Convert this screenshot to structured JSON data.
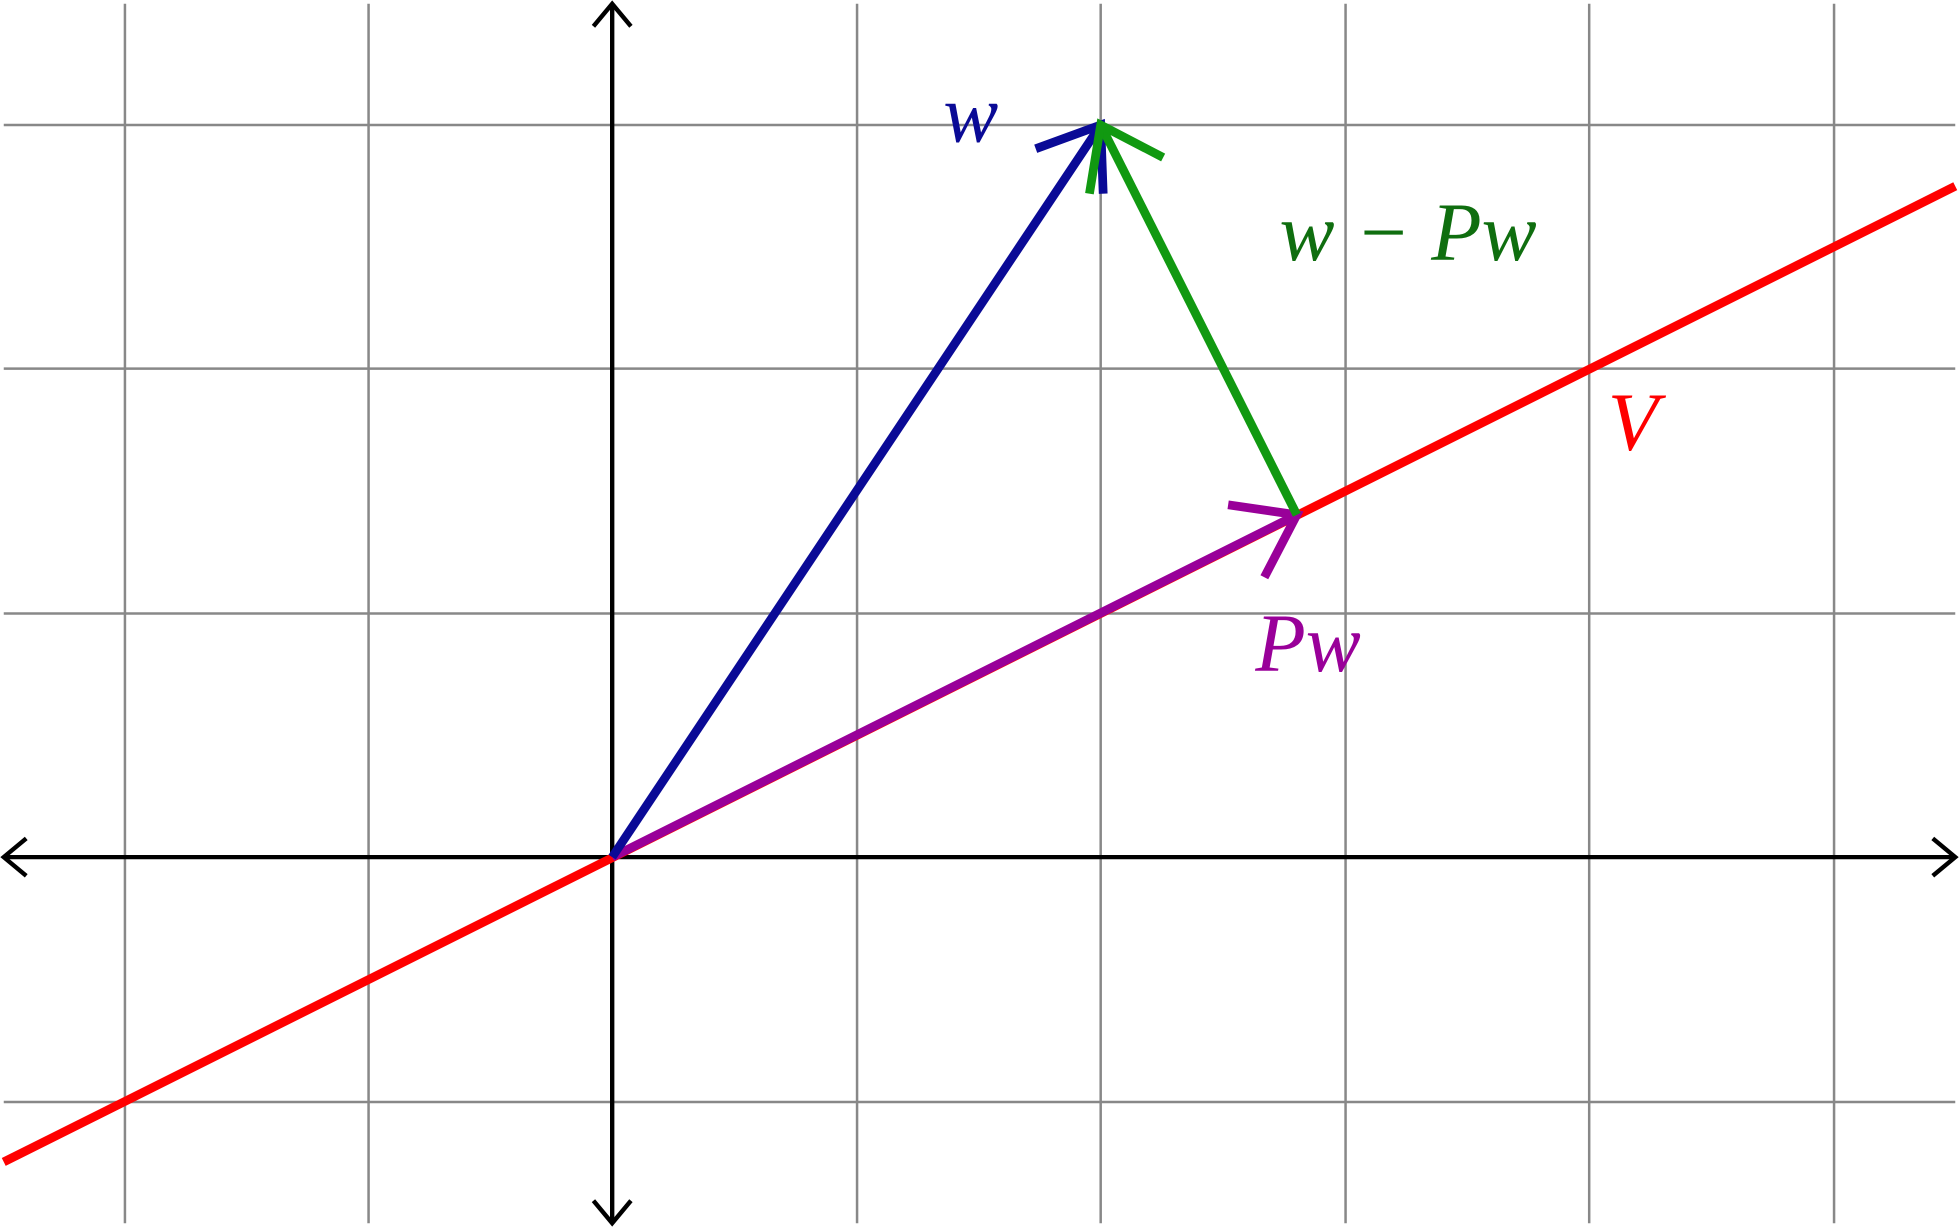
{
  "labels": {
    "w": "w",
    "difference": "w − Pw",
    "projection": "Pw",
    "subspace": "V"
  }
}
